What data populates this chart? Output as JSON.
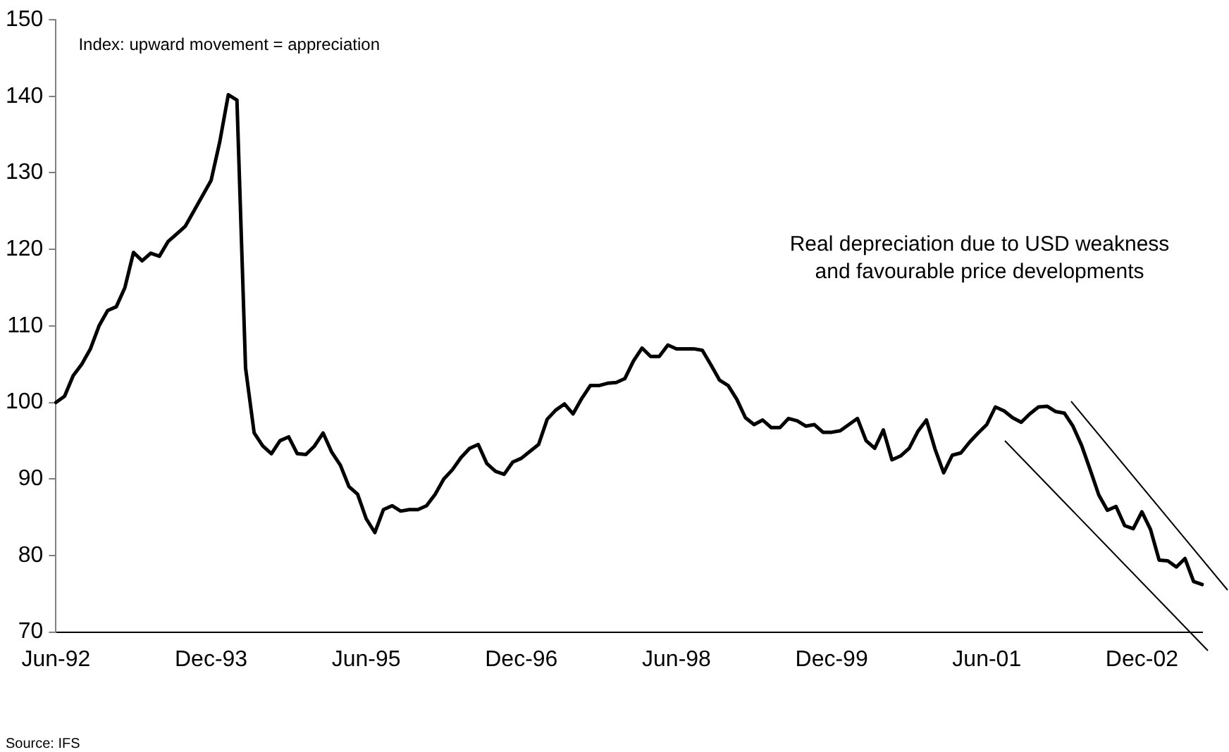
{
  "chart_data": {
    "type": "line",
    "categories": [
      "Jun-92",
      null,
      null,
      null,
      null,
      null,
      null,
      null,
      null,
      null,
      null,
      null,
      null,
      null,
      null,
      null,
      null,
      null,
      "Dec-93",
      null,
      null,
      null,
      null,
      null,
      null,
      null,
      null,
      null,
      null,
      null,
      null,
      null,
      null,
      null,
      null,
      null,
      "Jun-95",
      null,
      null,
      null,
      null,
      null,
      null,
      null,
      null,
      null,
      null,
      null,
      null,
      null,
      null,
      null,
      null,
      null,
      "Dec-96",
      null,
      null,
      null,
      null,
      null,
      null,
      null,
      null,
      null,
      null,
      null,
      null,
      null,
      null,
      null,
      null,
      null,
      "Jun-98",
      null,
      null,
      null,
      null,
      null,
      null,
      null,
      null,
      null,
      null,
      null,
      null,
      null,
      null,
      null,
      null,
      null,
      "Dec-99",
      null,
      null,
      null,
      null,
      null,
      null,
      null,
      null,
      null,
      null,
      null,
      null,
      null,
      null,
      null,
      null,
      null,
      "Jun-01",
      null,
      null,
      null,
      null,
      null,
      null,
      null,
      null,
      null,
      null,
      null,
      null,
      null,
      null,
      null,
      null,
      null,
      "Dec-02",
      null,
      null,
      null,
      null,
      null,
      null,
      null
    ],
    "series": [
      {
        "color": "#000000",
        "values": [
          100,
          100.8,
          103.5,
          105,
          107,
          110,
          112,
          112.5,
          115,
          119.6,
          118.5,
          119.5,
          119.1,
          121,
          122,
          123,
          125,
          127,
          129,
          134,
          140.2,
          139.5,
          104.5,
          96,
          94.3,
          93.3,
          95,
          95.5,
          93.3,
          93.2,
          94.3,
          96,
          93.5,
          91.8,
          89,
          88,
          84.8,
          83,
          86,
          86.5,
          85.8,
          86,
          86,
          86.5,
          88,
          90,
          91.2,
          92.8,
          94,
          94.5,
          92,
          91,
          90.6,
          92.2,
          92.7,
          93.6,
          94.5,
          97.8,
          99,
          99.8,
          98.5,
          100.5,
          102.2,
          102.2,
          102.5,
          102.6,
          103.1,
          105.4,
          107.1,
          106,
          106,
          107.5,
          107,
          107,
          107,
          106.8,
          104.9,
          102.9,
          102.2,
          100.4,
          98,
          97.1,
          97.7,
          96.7,
          96.7,
          97.9,
          97.6,
          96.9,
          97.1,
          96.1,
          96.1,
          96.3,
          97.1,
          97.9,
          95,
          94,
          96.4,
          92.5,
          93,
          94,
          96.2,
          97.7,
          93.9,
          90.8,
          93.1,
          93.4,
          94.8,
          96,
          97.1,
          99.4,
          98.9,
          98,
          97.4,
          98.5,
          99.4,
          99.5,
          98.8,
          98.6,
          96.9,
          94.4,
          91.2,
          87.9,
          85.9,
          86.4,
          83.9,
          83.5,
          85.7,
          83.4,
          79.4,
          79.3,
          78.5,
          79.6,
          76.6,
          76.2
        ]
      }
    ],
    "ylim": [
      70,
      150
    ],
    "yticks": [
      70,
      80,
      90,
      100,
      110,
      120,
      130,
      140,
      150
    ],
    "grid": false,
    "legend": false,
    "marker": "none",
    "line_style": "solid",
    "annotations": [
      "Index: upward movement = appreciation",
      "Real depreciation due to USD weakness\nand favourable price developments",
      "Source: IFS"
    ]
  }
}
